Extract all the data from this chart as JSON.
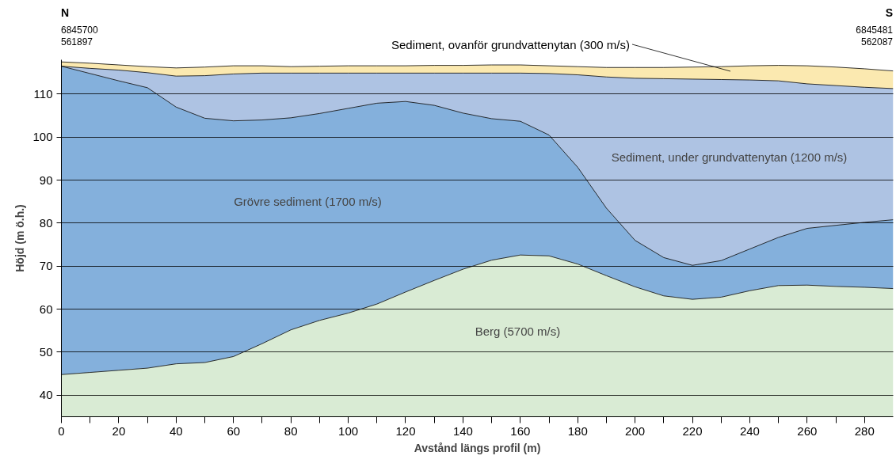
{
  "chart_data": {
    "type": "area",
    "xlabel": "Avstånd längs profil (m)",
    "ylabel": "Höjd (m ö.h.)",
    "x": [
      0,
      10,
      20,
      30,
      40,
      50,
      60,
      70,
      80,
      90,
      100,
      110,
      120,
      130,
      140,
      150,
      160,
      170,
      180,
      190,
      200,
      210,
      220,
      230,
      240,
      250,
      260,
      270,
      280,
      290
    ],
    "series": [
      {
        "color": "#fbe9b0",
        "values": [
          117.5,
          117.2,
          116.8,
          116.4,
          116.1,
          116.3,
          116.6,
          116.6,
          116.4,
          116.5,
          116.6,
          116.6,
          116.6,
          116.7,
          116.7,
          116.8,
          116.8,
          116.6,
          116.4,
          116.2,
          116.2,
          116.2,
          116.3,
          116.4,
          116.6,
          116.7,
          116.6,
          116.3,
          115.9,
          115.4
        ]
      },
      {
        "color": "#aec3e3",
        "values": [
          116.5,
          116,
          115.6,
          115,
          114.2,
          114.3,
          114.7,
          114.9,
          114.9,
          114.9,
          114.9,
          114.9,
          114.9,
          114.9,
          114.9,
          114.9,
          114.9,
          114.8,
          114.5,
          114,
          113.7,
          113.6,
          113.5,
          113.4,
          113.3,
          113.1,
          112.4,
          112,
          111.6,
          111.3
        ]
      },
      {
        "color": "#84b0dc",
        "values": [
          116.5,
          114.8,
          113.1,
          111.5,
          107,
          104.4,
          103.8,
          104,
          104.5,
          105.5,
          106.7,
          107.9,
          108.3,
          107.4,
          105.6,
          104.3,
          103.7,
          100.5,
          93,
          83.5,
          76,
          72,
          70.2,
          71.3,
          74,
          76.7,
          78.8,
          79.5,
          80.2,
          80.8
        ]
      },
      {
        "color": "#d9ebd4",
        "values": [
          44.8,
          45.3,
          45.8,
          46.3,
          47.3,
          47.6,
          49,
          52,
          55.2,
          57.4,
          59.1,
          61.2,
          64,
          66.7,
          69.3,
          71.4,
          72.6,
          72.4,
          70.5,
          67.8,
          65.2,
          63.1,
          62.3,
          62.8,
          64.3,
          65.5,
          65.6,
          65.3,
          65.1,
          64.8
        ]
      }
    ],
    "xlim": [
      0,
      290
    ],
    "ylim": [
      35,
      118
    ],
    "xticks": [
      0,
      {
        "value": 10,
        "label": null
      },
      20,
      {
        "value": 30,
        "label": null
      },
      40,
      {
        "value": 50,
        "label": null
      },
      60,
      {
        "value": 70,
        "label": null
      },
      80,
      {
        "value": 90,
        "label": null
      },
      100,
      {
        "value": 110,
        "label": null
      },
      120,
      {
        "value": 130,
        "label": null
      },
      140,
      {
        "value": 150,
        "label": null
      },
      160,
      {
        "value": 170,
        "label": null
      },
      180,
      {
        "value": 190,
        "label": null
      },
      200,
      {
        "value": 210,
        "label": null
      },
      220,
      {
        "value": 230,
        "label": null
      },
      240,
      {
        "value": 250,
        "label": null
      },
      260,
      {
        "value": 270,
        "label": null
      },
      280
    ],
    "yticks": [
      40,
      50,
      60,
      70,
      80,
      90,
      100,
      110
    ],
    "grid": "y",
    "annotations": [
      "Sediment, ovanför grundvattenytan (300 m/s)",
      "Sediment, under grundvattenytan (1200 m/s)",
      "Grövre sediment (1700 m/s)",
      "Berg  (5700 m/s)",
      "N",
      "6845700",
      "561897",
      "S",
      "6845481",
      "562087"
    ]
  }
}
